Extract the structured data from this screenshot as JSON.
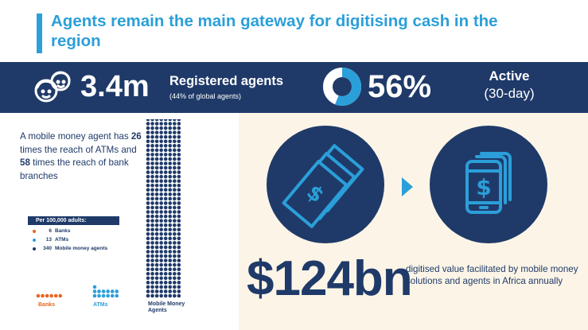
{
  "title": "Agents remain the main gateway for digitising cash in the region",
  "banner": {
    "agents_value": "3.4m",
    "agents_label": "Registered agents",
    "agents_sub": "(44% of global agents)",
    "agents_icon": "people-icon",
    "donut_icon": "donut-chart-icon",
    "active_share": 0.56,
    "active_value": "56%",
    "active_label": "Active",
    "active_period": "(30-day)"
  },
  "reach": {
    "text_a": "A mobile money agent has ",
    "ratio_atm_word": "26",
    "text_b": " times the reach of ATMs and ",
    "ratio_branch_word": "58",
    "text_c": " times the reach of bank branches"
  },
  "chart_data": {
    "type": "dot-pictogram",
    "title": "Per 100,000 adults:",
    "categories": [
      "Banks",
      "ATMs",
      "Mobile Money Agents"
    ],
    "values": [
      6,
      13,
      340
    ],
    "legend": [
      {
        "value": "6",
        "label": "Banks",
        "color": "#e8661f"
      },
      {
        "value": "13",
        "label": "ATMs",
        "color": "#2b9fd9"
      },
      {
        "value": "340",
        "label": "Mobile money agents",
        "color": "#1f3a69"
      }
    ],
    "category_labels": [
      "Banks",
      "ATMs",
      "Mobile Money Agents"
    ]
  },
  "value_panel": {
    "cash_icon": "banknotes-icon",
    "arrow_icon": "arrow-right-icon",
    "phone_icon": "mobile-money-phone-icon",
    "big_value": "$124bn",
    "description": "digitised value facilitated by mobile money solutions and agents in Africa annually"
  },
  "colors": {
    "navy": "#1f3a69",
    "accent_blue": "#2b9fd9",
    "orange": "#e8661f",
    "cream": "#fcf5e7"
  }
}
